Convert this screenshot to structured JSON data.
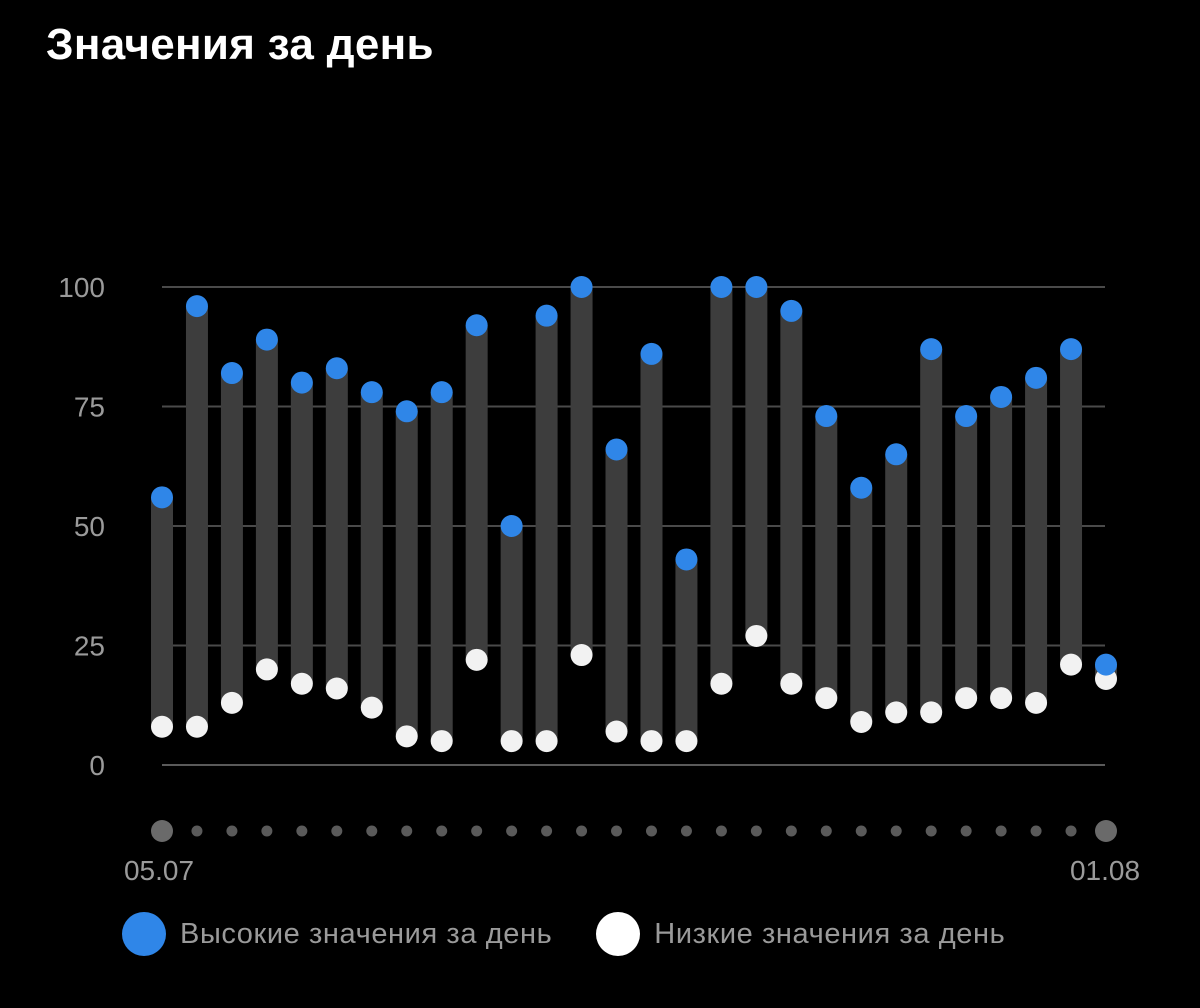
{
  "title": "Значения за день",
  "chart_data": {
    "type": "range-bar",
    "y_ticks": [
      0,
      25,
      50,
      75,
      100
    ],
    "ylim": [
      0,
      100
    ],
    "x_start_label": "05.07",
    "x_end_label": "01.08",
    "grid": true,
    "series": [
      {
        "name": "Высокие значения за день",
        "color": "#2f86e8",
        "values": [
          56,
          96,
          82,
          89,
          80,
          83,
          78,
          74,
          78,
          92,
          50,
          94,
          100,
          66,
          86,
          43,
          100,
          100,
          95,
          73,
          58,
          65,
          87,
          73,
          77,
          81,
          87,
          21
        ]
      },
      {
        "name": "Низкие значения за день",
        "color": "#f2f2f2",
        "values": [
          8,
          8,
          13,
          20,
          17,
          16,
          12,
          6,
          5,
          22,
          5,
          5,
          23,
          7,
          5,
          5,
          17,
          27,
          17,
          14,
          9,
          11,
          11,
          14,
          14,
          13,
          21,
          18
        ]
      }
    ]
  },
  "legend": {
    "high_label": "Высокие значения за день",
    "low_label": "Низкие значения за день",
    "high_color": "#2f86e8",
    "low_color": "#ffffff"
  }
}
